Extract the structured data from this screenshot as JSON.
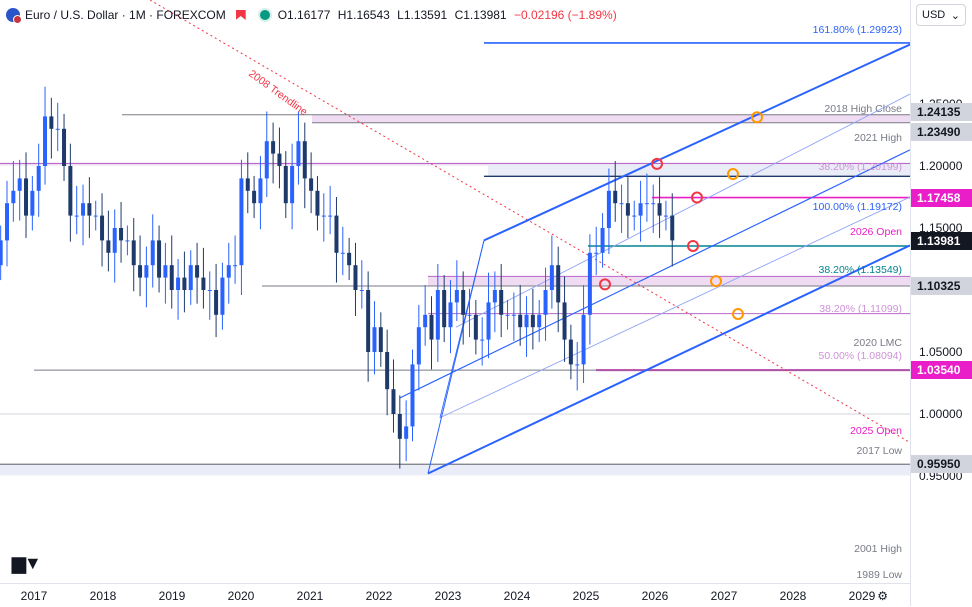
{
  "header": {
    "title": "Euro / U.S. Dollar · 1M · FOREXCOM",
    "open": "O1.16177",
    "high": "H1.16543",
    "low": "L1.13591",
    "close": "C1.13981",
    "change": "−0.02196 (−1.89%)"
  },
  "currency_button": "USD",
  "price_axis": {
    "ticks": [
      "1.25000",
      "1.20000",
      "1.15000",
      "1.10000",
      "1.05000",
      "1.00000",
      "0.95000"
    ],
    "tags": [
      {
        "label": "1.24135",
        "price": 1.24135,
        "style": "gray"
      },
      {
        "label": "1.23490",
        "price": 1.2349,
        "style": "gray"
      },
      {
        "label": "1.17458",
        "price": 1.17458,
        "style": "magenta"
      },
      {
        "label": "1.13981",
        "price": 1.13981,
        "style": "dark"
      },
      {
        "label": "1.10325",
        "price": 1.10325,
        "style": "gray"
      },
      {
        "label": "1.03540",
        "price": 1.0354,
        "style": "magenta"
      },
      {
        "label": "0.95950",
        "price": 0.9595,
        "style": "gray"
      }
    ]
  },
  "time_axis": {
    "years": [
      "2017",
      "2018",
      "2019",
      "2020",
      "2021",
      "2022",
      "2023",
      "2024",
      "2025",
      "2026",
      "2027",
      "2028",
      "2029"
    ]
  },
  "annotations": {
    "trendline_label": "2008 Trendline",
    "levels": [
      {
        "label": "161.80% (1.29923)",
        "price": 1.29923,
        "color": "#2962ff"
      },
      {
        "label": "2018 High Close",
        "price": 1.24135,
        "color": "#787b86"
      },
      {
        "label": "2021 High",
        "price": 1.2349,
        "color": "#787b86"
      },
      {
        "label": "38.20% (1.20199)",
        "price": 1.20199,
        "color": "#ce93d8"
      },
      {
        "label": "100.00% (1.19172)",
        "price": 1.19172,
        "color": "#2962ff"
      },
      {
        "label": "2026 Open",
        "price": 1.17458,
        "color": "#e91ec8"
      },
      {
        "label": "38.20% (1.13549)",
        "price": 1.13549,
        "color": "#00838f"
      },
      {
        "label": "38.20% (1.11099)",
        "price": 1.11099,
        "color": "#ce93d8"
      },
      {
        "label": "2020 LMC",
        "price": 1.10325,
        "color": "#787b86"
      },
      {
        "label": "50.00% (1.08094)",
        "price": 1.08094,
        "color": "#ce93d8"
      },
      {
        "label": "2025 Open",
        "price": 1.0354,
        "color": "#e91ec8"
      },
      {
        "label": "2017 Low",
        "price": 1.0354,
        "color": "#787b86"
      },
      {
        "label": "2001 High",
        "price": 0.9595,
        "color": "#787b86"
      },
      {
        "label": "1989 Low",
        "price": 0.9505,
        "color": "#787b86"
      }
    ]
  },
  "colors": {
    "up": "#2962ff",
    "down": "#1e3a6b",
    "channel": "#2962ff",
    "trendline": "#f23645"
  },
  "chart_data": {
    "type": "candlestick",
    "title": "Euro / U.S. Dollar · 1M · FOREXCOM",
    "xlabel": "",
    "ylabel": "",
    "x_range": [
      "2016-01",
      "2029-12"
    ],
    "ylim": [
      0.93,
      1.31
    ],
    "last_bar": {
      "open": 1.16177,
      "high": 1.16543,
      "low": 1.13591,
      "close": 1.13981
    },
    "candles_close": [
      1.05,
      1.07,
      1.06,
      1.09,
      1.12,
      1.14,
      1.17,
      1.18,
      1.19,
      1.16,
      1.18,
      1.2,
      1.24,
      1.23,
      1.23,
      1.2,
      1.16,
      1.16,
      1.17,
      1.16,
      1.16,
      1.14,
      1.13,
      1.15,
      1.14,
      1.14,
      1.12,
      1.11,
      1.12,
      1.14,
      1.11,
      1.12,
      1.1,
      1.11,
      1.1,
      1.12,
      1.11,
      1.1,
      1.1,
      1.08,
      1.11,
      1.12,
      1.12,
      1.19,
      1.18,
      1.17,
      1.19,
      1.22,
      1.21,
      1.2,
      1.17,
      1.2,
      1.22,
      1.19,
      1.18,
      1.16,
      1.16,
      1.16,
      1.13,
      1.13,
      1.12,
      1.1,
      1.1,
      1.05,
      1.07,
      1.05,
      1.02,
      1.0,
      0.98,
      0.99,
      1.04,
      1.07,
      1.08,
      1.06,
      1.1,
      1.07,
      1.09,
      1.1,
      1.08,
      1.08,
      1.06,
      1.06,
      1.09,
      1.1,
      1.08,
      1.08,
      1.08,
      1.07,
      1.08,
      1.07,
      1.08,
      1.1,
      1.12,
      1.09,
      1.06,
      1.04,
      1.04,
      1.08,
      1.13,
      1.13,
      1.15,
      1.18,
      1.17,
      1.17,
      1.16,
      1.16,
      1.17,
      1.17,
      1.17,
      1.16,
      1.16,
      1.14
    ],
    "series": [
      {
        "name": "",
        "values": []
      }
    ],
    "legend": "none",
    "grid": false
  }
}
